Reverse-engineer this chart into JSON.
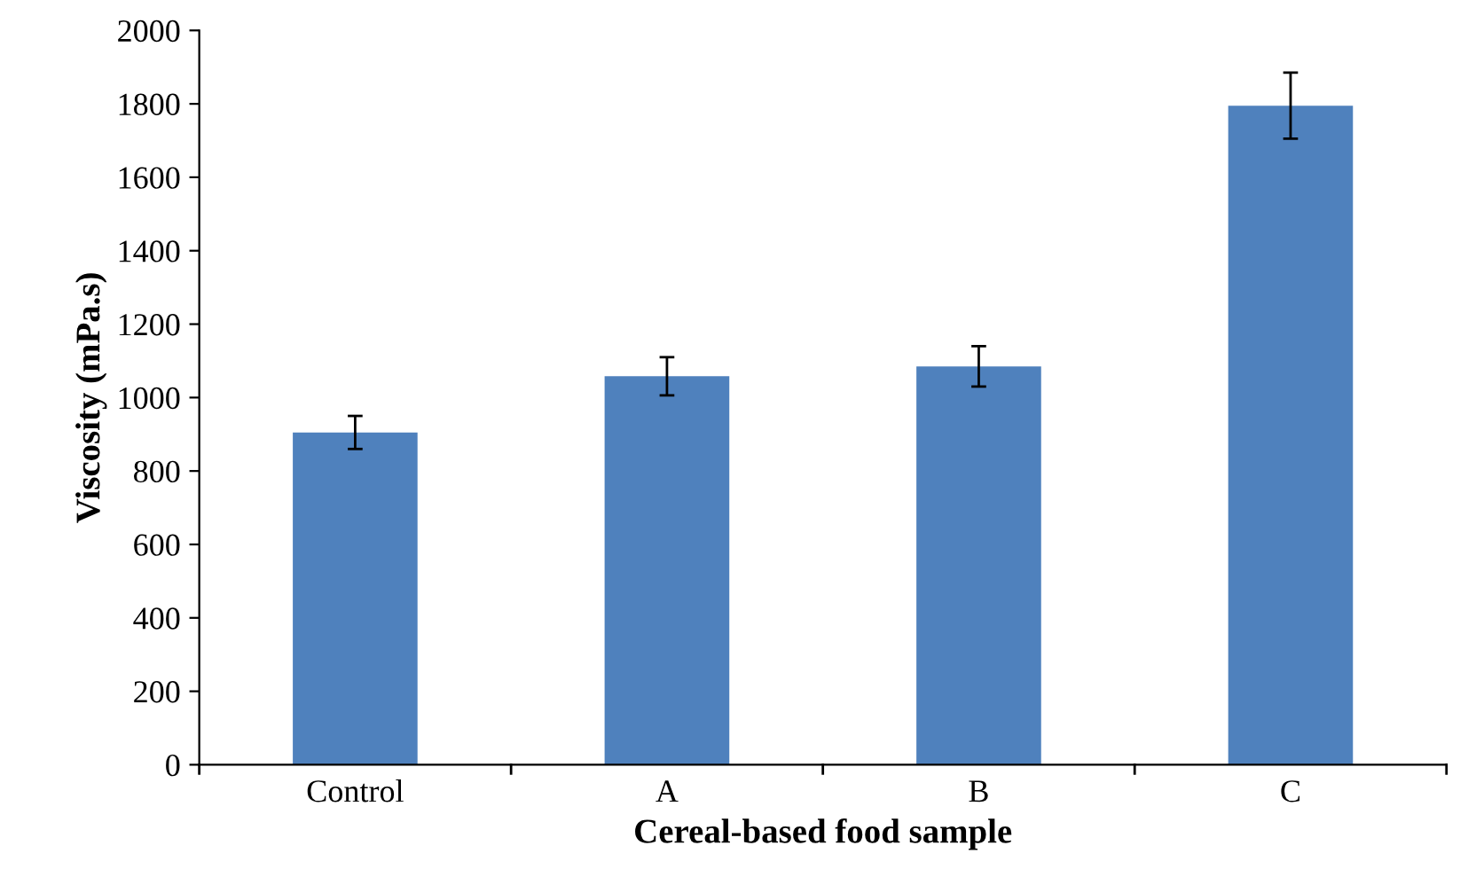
{
  "chart_data": {
    "type": "bar",
    "xlabel": "Cereal-based food sample",
    "ylabel": "Viscosity (mPa.s)",
    "categories": [
      "Control",
      "A",
      "B",
      "C"
    ],
    "values": [
      905,
      1058,
      1085,
      1795
    ],
    "errors": [
      45,
      52,
      55,
      90
    ],
    "color": "#4f81bd",
    "ylim": [
      0,
      2000
    ],
    "yticks": [
      0,
      200,
      400,
      600,
      800,
      1000,
      1200,
      1400,
      1600,
      1800,
      2000
    ],
    "grid": false
  }
}
